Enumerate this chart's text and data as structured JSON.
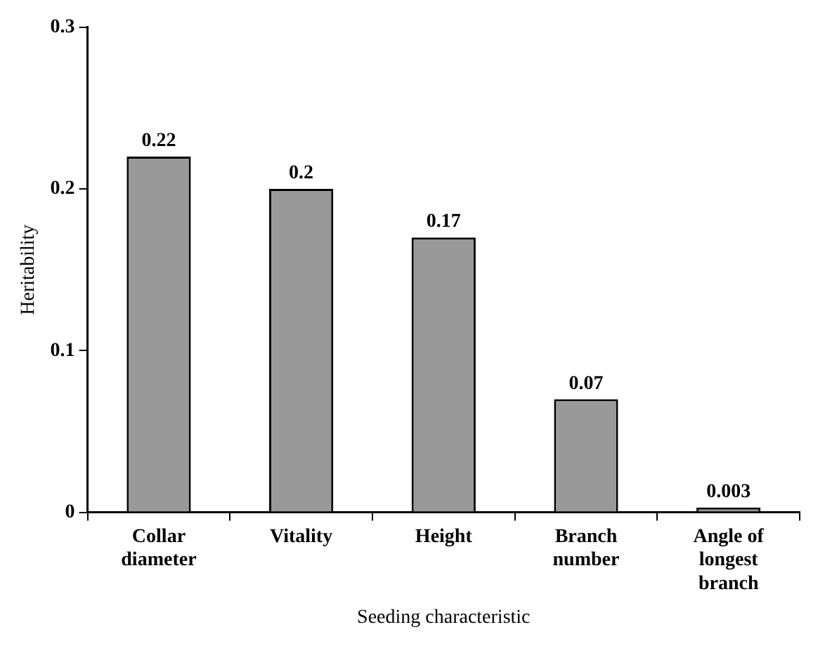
{
  "chart_data": {
    "type": "bar",
    "xlabel": "Seeding characteristic",
    "ylabel": "Heritability",
    "categories": [
      "Collar diameter",
      "Vitality",
      "Height",
      "Branch number",
      "Angle of longest branch"
    ],
    "values": [
      0.22,
      0.2,
      0.17,
      0.07,
      0.003
    ],
    "color": "#999999",
    "ylim": [
      0,
      0.3
    ],
    "yticks": [
      0,
      0.1,
      0.2,
      0.3
    ],
    "grid": false,
    "legend": false,
    "data_labels": true
  }
}
